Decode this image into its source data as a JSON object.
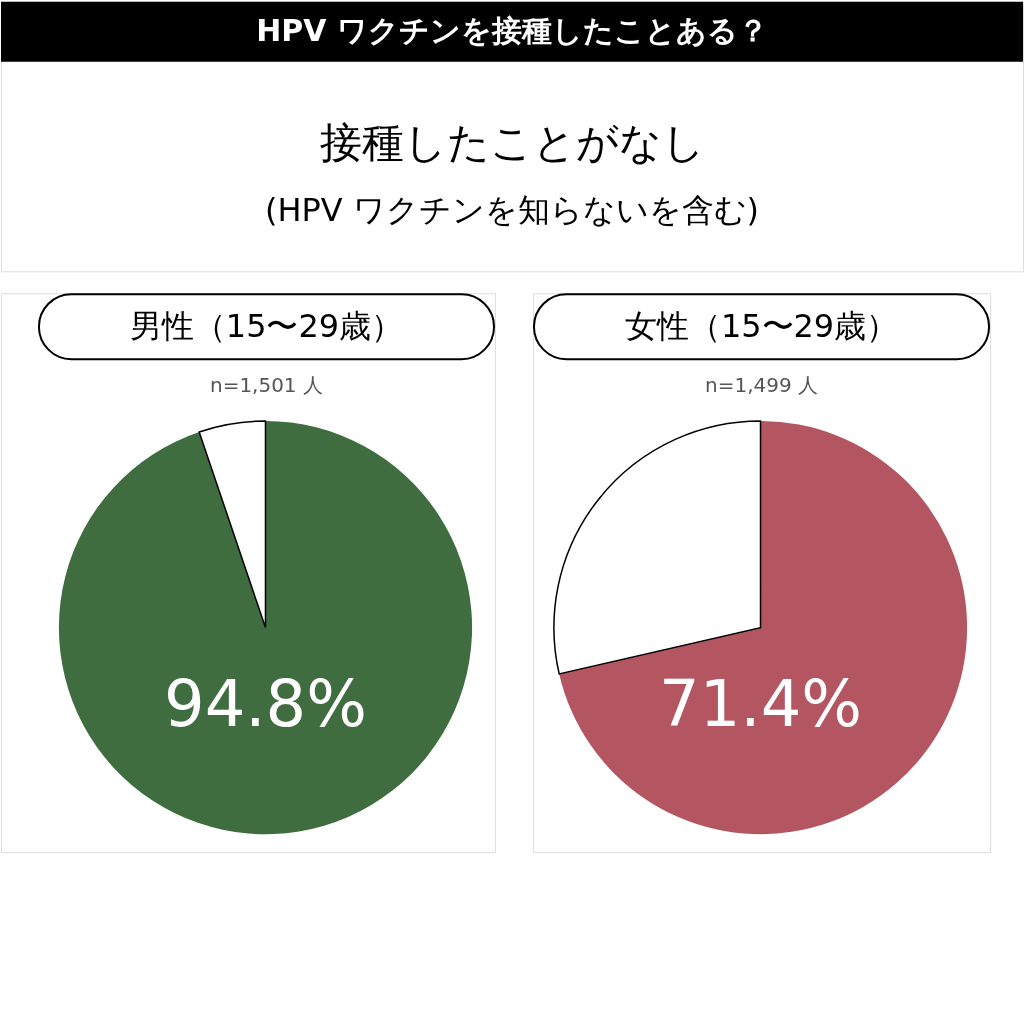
{
  "chart_data": [
    {
      "type": "other",
      "title": "HPV ワクチンを接種したことある？",
      "subtitle": "接種したことがなし",
      "annotations": [
        "(HPV ワクチンを知らないを含む)"
      ]
    },
    {
      "type": "pie",
      "title": "男性（15〜29歳）",
      "subtitle": "n=1,501 人",
      "categories": [
        null,
        null
      ],
      "values": [
        94.8,
        5.2
      ],
      "colors": [
        "#3f6d40",
        "#ffffff"
      ],
      "value_labels": [
        "94.8%",
        null
      ]
    },
    {
      "type": "pie",
      "title": "女性（15〜29歳）",
      "subtitle": "n=1,499 人",
      "categories": [
        null,
        null
      ],
      "values": [
        71.4,
        28.6
      ],
      "colors": [
        "#b35661",
        "#ffffff"
      ],
      "value_labels": [
        "71.4%",
        null
      ]
    }
  ]
}
